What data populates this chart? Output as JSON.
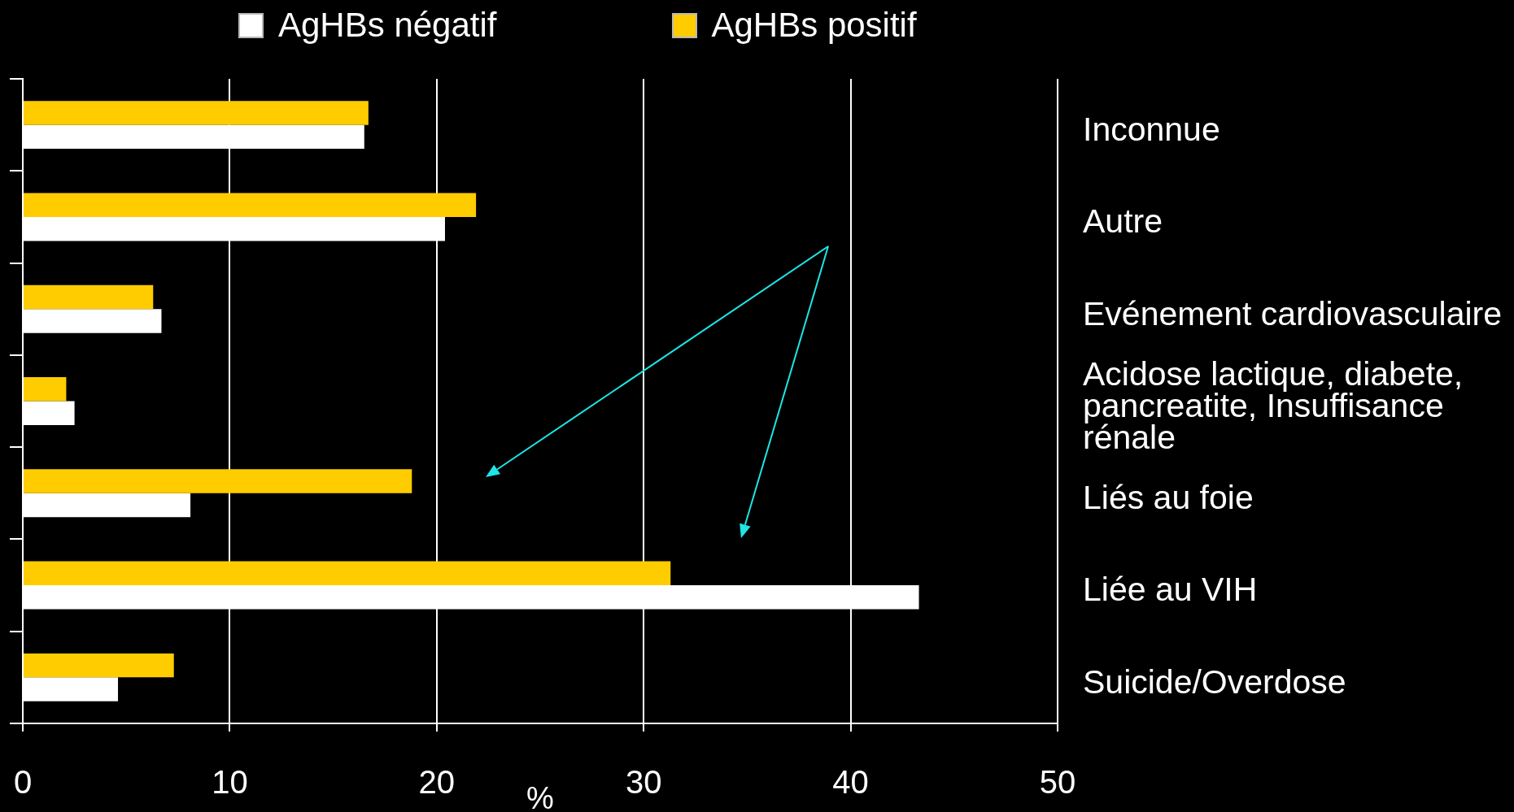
{
  "chart_data": {
    "type": "bar",
    "orientation": "horizontal",
    "categories": [
      "Inconnue",
      "Autre",
      "Evénement cardiovasculaire",
      "Acidose lactique, diabete, pancreatite, Insuffisance rénale",
      "Liés au foie",
      "Liée au VIH",
      "Suicide/Overdose"
    ],
    "series": [
      {
        "name": "AgHBs négatif",
        "color": "#ffffff",
        "values": [
          16.5,
          20.4,
          6.7,
          2.5,
          8.1,
          43.3,
          4.6
        ]
      },
      {
        "name": "AgHBs positif",
        "color": "#ffcc00",
        "values": [
          16.7,
          21.9,
          6.3,
          2.1,
          18.8,
          31.3,
          7.3
        ]
      }
    ],
    "xlabel": "%",
    "xlim": [
      0,
      50
    ],
    "xticks": [
      0,
      10,
      20,
      30,
      40,
      50
    ],
    "grid": "x",
    "legend": "top"
  }
}
